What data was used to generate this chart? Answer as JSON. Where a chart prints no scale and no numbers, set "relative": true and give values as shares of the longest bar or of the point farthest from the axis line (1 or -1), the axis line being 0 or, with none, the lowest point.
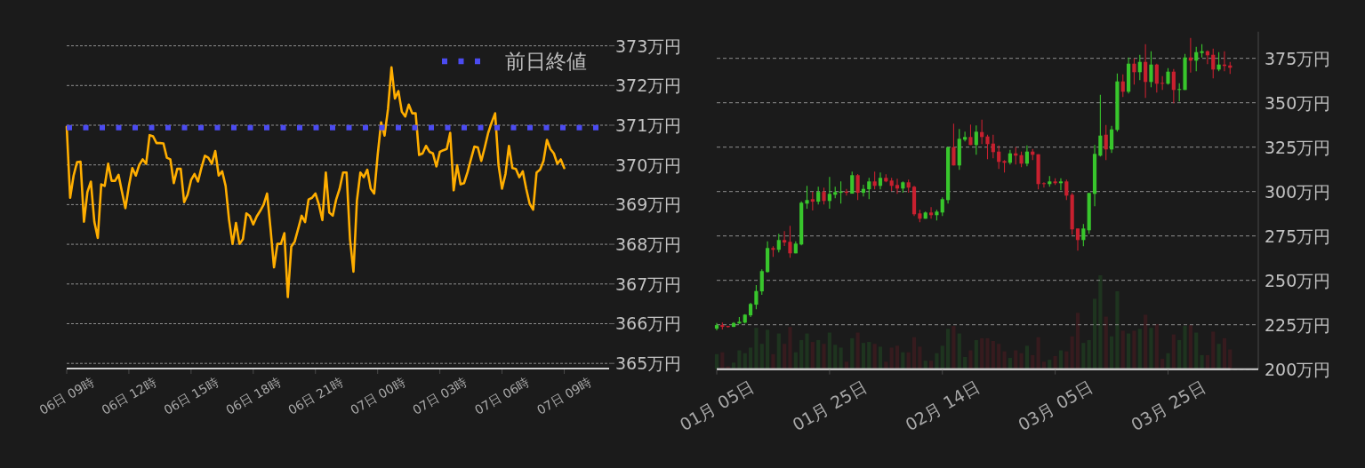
{
  "chart_data": [
    {
      "type": "line",
      "categories": [
        "06日 09時",
        null,
        null,
        null,
        null,
        null,
        null,
        null,
        null,
        null,
        null,
        null,
        null,
        null,
        null,
        null,
        null,
        null,
        "06日 12時",
        null,
        null,
        null,
        null,
        null,
        null,
        null,
        null,
        null,
        null,
        null,
        null,
        null,
        null,
        null,
        null,
        null,
        "06日 15時",
        null,
        null,
        null,
        null,
        null,
        null,
        null,
        null,
        null,
        null,
        null,
        null,
        null,
        null,
        null,
        null,
        null,
        "06日 18時",
        null,
        null,
        null,
        null,
        null,
        null,
        null,
        null,
        null,
        null,
        null,
        null,
        null,
        null,
        null,
        null,
        null,
        "06日 21時",
        null,
        null,
        null,
        null,
        null,
        null,
        null,
        null,
        null,
        null,
        null,
        null,
        null,
        null,
        null,
        null,
        null,
        "07日 00時",
        null,
        null,
        null,
        null,
        null,
        null,
        null,
        null,
        null,
        null,
        null,
        null,
        null,
        null,
        null,
        null,
        null,
        "07日 03時",
        null,
        null,
        null,
        null,
        null,
        null,
        null,
        null,
        null,
        null,
        null,
        null,
        null,
        null,
        null,
        null,
        null,
        "07日 06時",
        null,
        null,
        null,
        null,
        null,
        null,
        null,
        null,
        null,
        null,
        null,
        null,
        null,
        null,
        null,
        null,
        null,
        "07日 09時",
        null,
        null,
        null,
        null,
        null,
        null,
        null,
        null,
        null,
        null,
        null,
        null,
        null
      ],
      "series": [
        {
          "color": "#ffae00",
          "values": [
            370.96,
            369.17,
            369.73,
            370.07,
            370.08,
            368.57,
            369.32,
            369.58,
            368.57,
            368.16,
            369.51,
            369.47,
            370.03,
            369.6,
            369.6,
            369.75,
            369.32,
            368.91,
            369.47,
            369.92,
            369.73,
            370,
            370.14,
            370.03,
            370.75,
            370.72,
            370.55,
            370.55,
            370.54,
            370.18,
            370.14,
            369.54,
            369.9,
            369.9,
            369.06,
            369.25,
            369.62,
            369.77,
            369.58,
            369.93,
            370.23,
            370.18,
            370.03,
            370.35,
            369.73,
            369.84,
            369.47,
            368.61,
            368.01,
            368.54,
            368.01,
            368.13,
            368.78,
            368.71,
            368.5,
            368.7,
            368.84,
            369,
            369.28,
            368.39,
            367.42,
            368.01,
            368.01,
            368.28,
            366.67,
            367.94,
            368.07,
            368.39,
            368.72,
            368.56,
            369.13,
            369.17,
            369.28,
            369,
            368.61,
            369.81,
            368.8,
            368.72,
            369.13,
            369.4,
            369.81,
            369.81,
            368.13,
            367.31,
            369.1,
            369.81,
            369.69,
            369.88,
            369.4,
            369.28,
            370.25,
            371.07,
            370.74,
            371.41,
            372.46,
            371.67,
            371.86,
            371.34,
            371.22,
            371.52,
            371.3,
            371.3,
            370.25,
            370.29,
            370.48,
            370.33,
            370.29,
            369.96,
            370.33,
            370.37,
            370.4,
            370.81,
            369.36,
            369.99,
            369.51,
            369.54,
            369.81,
            370.14,
            370.46,
            370.44,
            370.1,
            370.44,
            370.81,
            371.07,
            371.3,
            369.99,
            369.4,
            369.77,
            370.48,
            369.92,
            369.9,
            369.69,
            369.84,
            369.4,
            369.02,
            368.87,
            369.81,
            369.88,
            370.1,
            370.63,
            370.4,
            370.29,
            370.03,
            370.14,
            369.92,
            null,
            null,
            null,
            null,
            null,
            null,
            null,
            null,
            null,
            null,
            null,
            null,
            null
          ]
        }
      ],
      "ylim": [
        364.87,
        373
      ],
      "yticks": [
        {
          "value": 365,
          "label": "365万円"
        },
        {
          "value": 366,
          "label": "366万円"
        },
        {
          "value": 367,
          "label": "367万円"
        },
        {
          "value": 368,
          "label": "368万円"
        },
        {
          "value": 369,
          "label": "369万円"
        },
        {
          "value": 370,
          "label": "370万円"
        },
        {
          "value": 371,
          "label": "371万円"
        },
        {
          "value": 372,
          "label": "372万円"
        },
        {
          "value": 373,
          "label": "373万円"
        }
      ],
      "grid": "y",
      "legend": "top right",
      "ref_lines": [
        {
          "axis": "y",
          "value": 370.94,
          "label": "前日終値",
          "color": "#4b4bf0",
          "line_style": "dotted"
        }
      ]
    },
    {
      "type": "candlestick",
      "x": [
        "--01-05",
        "--01-06",
        "--01-07",
        "--01-08",
        "--01-09",
        "--01-10",
        "--01-11",
        "--01-12",
        "--01-13",
        "--01-14",
        "--01-15",
        "--01-16",
        "--01-17",
        "--01-18",
        "--01-19",
        "--01-20",
        "--01-21",
        "--01-22",
        "--01-23",
        "--01-24",
        "--01-25",
        "--01-26",
        "--01-27",
        "--01-28",
        "--01-29",
        "--01-30",
        "--01-31",
        "--02-01",
        "--02-02",
        "--02-03",
        "--02-04",
        "--02-05",
        "--02-06",
        "--02-07",
        "--02-08",
        "--02-09",
        "--02-10",
        "--02-11",
        "--02-12",
        "--02-13",
        "--02-14",
        "--02-15",
        "--02-16",
        "--02-17",
        "--02-18",
        "--02-19",
        "--02-20",
        "--02-21",
        "--02-22",
        "--02-23",
        "--02-24",
        "--02-25",
        "--02-26",
        "--02-27",
        "--02-28",
        "--02-29",
        "--03-01",
        "--03-02",
        "--03-03",
        "--03-04",
        "--03-05",
        "--03-06",
        "--03-07",
        "--03-08",
        "--03-09",
        "--03-10",
        "--03-11",
        "--03-12",
        "--03-13",
        "--03-14",
        "--03-15",
        "--03-16",
        "--03-17",
        "--03-18",
        "--03-19",
        "--03-20",
        "--03-21",
        "--03-22",
        "--03-23",
        "--03-24",
        "--03-25",
        "--03-26",
        "--03-27",
        "--03-28",
        "--03-29",
        "--03-30",
        "--03-31",
        "--04-01",
        "--04-02",
        "--04-03",
        "--04-04",
        "--04-05"
      ],
      "ohlc": [
        [
          222.8,
          226,
          221.8,
          224.8
        ],
        [
          224.8,
          226.2,
          222.3,
          223.8
        ],
        [
          224.3,
          224.5,
          223.5,
          223.7
        ],
        [
          223.8,
          226.5,
          223.7,
          226
        ],
        [
          225.7,
          229.3,
          225.6,
          226.7
        ],
        [
          226.2,
          231,
          225.7,
          230.7
        ],
        [
          230.3,
          237.3,
          229.3,
          236.7
        ],
        [
          236.3,
          247.3,
          233.7,
          244
        ],
        [
          243.8,
          256.2,
          241.8,
          255.2
        ],
        [
          254.7,
          272,
          254.3,
          268.2
        ],
        [
          268.2,
          269.2,
          263.2,
          267.2
        ],
        [
          267.2,
          276.2,
          265.7,
          272.7
        ],
        [
          272.7,
          277.7,
          269.3,
          271.3
        ],
        [
          271.7,
          280.7,
          262.7,
          265.2
        ],
        [
          265.2,
          272,
          265.2,
          270.7
        ],
        [
          270.2,
          294.5,
          269.7,
          293.7
        ],
        [
          293.2,
          303.2,
          290.3,
          295.2
        ],
        [
          295.7,
          299.8,
          289.3,
          294.3
        ],
        [
          294.3,
          302.7,
          292.7,
          299.8
        ],
        [
          299.8,
          302.2,
          292.7,
          294.7
        ],
        [
          294.7,
          308.2,
          290.3,
          298.7
        ],
        [
          298.2,
          302.7,
          296.2,
          299.7
        ],
        [
          299.3,
          305.7,
          293.2,
          300
        ],
        [
          300,
          301.5,
          297.7,
          299.3
        ],
        [
          298.8,
          311.2,
          298.8,
          309.2
        ],
        [
          309.2,
          309.8,
          295.2,
          299.3
        ],
        [
          299.3,
          303.8,
          297.2,
          301.5
        ],
        [
          301.3,
          307.7,
          295.7,
          305.7
        ],
        [
          305.7,
          311.2,
          301.2,
          303.2
        ],
        [
          303.2,
          310.7,
          301.2,
          307.7
        ],
        [
          307.7,
          309.7,
          305.2,
          305.7
        ],
        [
          306.2,
          307.7,
          300.2,
          303.2
        ],
        [
          303.7,
          307.2,
          298.7,
          301.7
        ],
        [
          301.7,
          305.7,
          299.3,
          305.2
        ],
        [
          305.2,
          306.7,
          299.3,
          302.2
        ],
        [
          302.7,
          303.2,
          286.2,
          287.2
        ],
        [
          287.7,
          289.7,
          282.7,
          284.7
        ],
        [
          284.7,
          288.7,
          284.7,
          288.2
        ],
        [
          288.2,
          291.2,
          284.7,
          286.7
        ],
        [
          286.7,
          289.7,
          283.7,
          288.7
        ],
        [
          288.2,
          296.7,
          286.2,
          295.7
        ],
        [
          295.2,
          325,
          293.2,
          325
        ],
        [
          325,
          338.2,
          314.7,
          314.7
        ],
        [
          314.7,
          335.2,
          312.2,
          329.7
        ],
        [
          329.2,
          333.7,
          328.2,
          330.7
        ],
        [
          330.7,
          337.7,
          326.2,
          326.2
        ],
        [
          326.2,
          337.2,
          320.7,
          333.7
        ],
        [
          333.5,
          340.5,
          326.7,
          330.7
        ],
        [
          331,
          332,
          318.2,
          326.7
        ],
        [
          327,
          332,
          318.7,
          322.2
        ],
        [
          322.5,
          326,
          312.7,
          316.7
        ],
        [
          317.2,
          317.7,
          310.7,
          316.2
        ],
        [
          316.2,
          323.5,
          315.2,
          321.5
        ],
        [
          321.5,
          325,
          315.2,
          320.2
        ],
        [
          320.5,
          322.5,
          313.7,
          315.7
        ],
        [
          315.7,
          326,
          314.2,
          322.5
        ],
        [
          322.5,
          324,
          317.7,
          320.7
        ],
        [
          321,
          321,
          301.2,
          304.2
        ],
        [
          304.7,
          305.2,
          302.2,
          304.2
        ],
        [
          304.2,
          308.7,
          302.7,
          305.7
        ],
        [
          305.7,
          307.5,
          303.7,
          304.7
        ],
        [
          304.7,
          307.5,
          300.7,
          305.7
        ],
        [
          305.7,
          306.7,
          295.2,
          297.7
        ],
        [
          298.2,
          299.2,
          275.7,
          278.7
        ],
        [
          279.2,
          279.2,
          266.7,
          272.7
        ],
        [
          272.7,
          281.7,
          269.2,
          279.2
        ],
        [
          278.2,
          299.2,
          276.2,
          299.2
        ],
        [
          298.7,
          326.2,
          291.7,
          321.2
        ],
        [
          320.2,
          354.5,
          319.7,
          331.5
        ],
        [
          332,
          337.5,
          317.7,
          323.7
        ],
        [
          323.7,
          337,
          321.7,
          335
        ],
        [
          334.7,
          366.5,
          333.7,
          362
        ],
        [
          362,
          366,
          353.2,
          356.2
        ],
        [
          356.2,
          375.5,
          355.2,
          372
        ],
        [
          372,
          375,
          360.2,
          367.2
        ],
        [
          367.2,
          377,
          362.7,
          373
        ],
        [
          373,
          383,
          352.7,
          361.7
        ],
        [
          361.7,
          379,
          358.7,
          371.5
        ],
        [
          371.5,
          372,
          355.7,
          360.7
        ],
        [
          361.2,
          365,
          357.2,
          360.7
        ],
        [
          360.7,
          369.5,
          360.2,
          367.5
        ],
        [
          367.5,
          369,
          349.7,
          357.2
        ],
        [
          357.2,
          361,
          350.7,
          357.7
        ],
        [
          357.2,
          377.5,
          357.2,
          375.5
        ],
        [
          375.5,
          386.5,
          367,
          373.7
        ],
        [
          373.7,
          381.5,
          367.7,
          378.5
        ],
        [
          378,
          383,
          375.5,
          379
        ],
        [
          379,
          379.5,
          371.7,
          376.7
        ],
        [
          377,
          380.5,
          363.7,
          368.7
        ],
        [
          368.7,
          378.5,
          367.7,
          371.5
        ],
        [
          371.5,
          379,
          367.7,
          370.7
        ],
        [
          371,
          373,
          366.2,
          369.7
        ]
      ],
      "colors": [
        "#38c62c",
        "#c8202f",
        "#c8202f",
        "#38c62c",
        "#38c62c",
        "#38c62c",
        "#38c62c",
        "#38c62c",
        "#38c62c",
        "#38c62c",
        "#c8202f",
        "#38c62c",
        "#c8202f",
        "#c8202f",
        "#38c62c",
        "#38c62c",
        "#38c62c",
        "#c8202f",
        "#38c62c",
        "#c8202f",
        "#38c62c",
        "#38c62c",
        "#38c62c",
        "#c8202f",
        "#38c62c",
        "#c8202f",
        "#38c62c",
        "#38c62c",
        "#c8202f",
        "#38c62c",
        "#c8202f",
        "#c8202f",
        "#c8202f",
        "#38c62c",
        "#c8202f",
        "#c8202f",
        "#c8202f",
        "#38c62c",
        "#c8202f",
        "#38c62c",
        "#38c62c",
        "#38c62c",
        "#c8202f",
        "#38c62c",
        "#38c62c",
        "#c8202f",
        "#38c62c",
        "#c8202f",
        "#c8202f",
        "#c8202f",
        "#c8202f",
        "#c8202f",
        "#38c62c",
        "#c8202f",
        "#c8202f",
        "#38c62c",
        "#c8202f",
        "#c8202f",
        "#c8202f",
        "#38c62c",
        "#c8202f",
        "#38c62c",
        "#c8202f",
        "#c8202f",
        "#c8202f",
        "#38c62c",
        "#38c62c",
        "#38c62c",
        "#38c62c",
        "#c8202f",
        "#38c62c",
        "#38c62c",
        "#c8202f",
        "#38c62c",
        "#c8202f",
        "#38c62c",
        "#c8202f",
        "#38c62c",
        "#c8202f",
        "#c8202f",
        "#38c62c",
        "#c8202f",
        "#38c62c",
        "#38c62c",
        "#c8202f",
        "#38c62c",
        "#38c62c",
        "#c8202f",
        "#c8202f",
        "#38c62c",
        "#c8202f",
        "#c8202f"
      ],
      "xlim": [
        "--01-05",
        "--04-10"
      ],
      "xticks": [
        {
          "value": "--01-05",
          "label": "01月 05日"
        },
        {
          "value": "--01-25",
          "label": "01月 25日"
        },
        {
          "value": "--02-14",
          "label": "02月 14日"
        },
        {
          "value": "--03-05",
          "label": "03月 05日"
        },
        {
          "value": "--03-25",
          "label": "03月 25日"
        }
      ],
      "ylim": [
        200,
        390
      ],
      "yticks": [
        {
          "value": 200,
          "label": "200万円"
        },
        {
          "value": 225,
          "label": "225万円"
        },
        {
          "value": 250,
          "label": "250万円"
        },
        {
          "value": 275,
          "label": "275万円"
        },
        {
          "value": 300,
          "label": "300万円"
        },
        {
          "value": 325,
          "label": "325万円"
        },
        {
          "value": 350,
          "label": "350万円"
        },
        {
          "value": 375,
          "label": "375万円"
        }
      ],
      "grid": "y"
    },
    {
      "type": "bar",
      "relative": true,
      "categories": [
        null,
        null,
        null,
        null,
        null,
        null,
        null,
        null,
        null,
        null,
        null,
        null,
        null,
        null,
        null,
        null,
        null,
        null,
        null,
        null,
        null,
        null,
        null,
        null,
        null,
        null,
        null,
        null,
        null,
        null,
        null,
        null,
        null,
        null,
        null,
        null,
        null,
        null,
        null,
        null,
        null,
        null,
        null,
        null,
        null,
        null,
        null,
        null,
        null,
        null,
        null,
        null,
        null,
        null,
        null,
        null,
        null,
        null,
        null,
        null,
        null,
        null,
        null,
        null,
        null,
        null,
        null,
        null,
        null,
        null,
        null,
        null,
        null,
        null,
        null,
        null,
        null,
        null,
        null,
        null,
        null,
        null,
        null,
        null,
        null,
        null,
        null,
        null,
        null,
        null,
        null,
        null
      ],
      "values": [
        0.16,
        0.18,
        0.03,
        0.07,
        0.2,
        0.17,
        0.23,
        0.44,
        0.27,
        0.42,
        0.16,
        0.38,
        0.27,
        0.45,
        0.18,
        0.31,
        0.38,
        0.29,
        0.31,
        0.27,
        0.39,
        0.26,
        0.23,
        0.08,
        0.33,
        0.39,
        0.28,
        0.29,
        0.27,
        0.24,
        0.08,
        0.23,
        0.25,
        0.18,
        0.18,
        0.34,
        0.24,
        0.09,
        0.09,
        0.17,
        0.25,
        0.43,
        0.46,
        0.38,
        0.13,
        0.2,
        0.31,
        0.33,
        0.33,
        0.3,
        0.27,
        0.19,
        0.12,
        0.2,
        0.17,
        0.25,
        0.15,
        0.34,
        0.08,
        0.1,
        0.14,
        0.2,
        0.19,
        0.35,
        0.6,
        0.28,
        0.31,
        0.75,
        1,
        0.56,
        0.35,
        0.83,
        0.41,
        0.38,
        0.41,
        0.43,
        0.58,
        0.44,
        0.48,
        0.11,
        0.17,
        0.37,
        0.31,
        0.46,
        0.47,
        0.39,
        0.15,
        0.15,
        0.4,
        0.27,
        0.33,
        0.21
      ],
      "colors": [
        "#1e341f",
        "#361b1e",
        "#361b1e",
        "#1e341f",
        "#1e341f",
        "#1e341f",
        "#1e341f",
        "#1e341f",
        "#1e341f",
        "#1e341f",
        "#361b1e",
        "#1e341f",
        "#361b1e",
        "#361b1e",
        "#1e341f",
        "#1e341f",
        "#1e341f",
        "#361b1e",
        "#1e341f",
        "#361b1e",
        "#1e341f",
        "#1e341f",
        "#1e341f",
        "#361b1e",
        "#1e341f",
        "#361b1e",
        "#1e341f",
        "#1e341f",
        "#361b1e",
        "#1e341f",
        "#361b1e",
        "#361b1e",
        "#361b1e",
        "#1e341f",
        "#361b1e",
        "#361b1e",
        "#361b1e",
        "#1e341f",
        "#361b1e",
        "#1e341f",
        "#1e341f",
        "#1e341f",
        "#361b1e",
        "#1e341f",
        "#1e341f",
        "#361b1e",
        "#1e341f",
        "#361b1e",
        "#361b1e",
        "#361b1e",
        "#361b1e",
        "#361b1e",
        "#1e341f",
        "#361b1e",
        "#361b1e",
        "#1e341f",
        "#361b1e",
        "#361b1e",
        "#361b1e",
        "#1e341f",
        "#361b1e",
        "#1e341f",
        "#361b1e",
        "#361b1e",
        "#361b1e",
        "#1e341f",
        "#1e341f",
        "#1e341f",
        "#1e341f",
        "#361b1e",
        "#1e341f",
        "#1e341f",
        "#361b1e",
        "#1e341f",
        "#361b1e",
        "#1e341f",
        "#361b1e",
        "#1e341f",
        "#361b1e",
        "#361b1e",
        "#1e341f",
        "#361b1e",
        "#1e341f",
        "#1e341f",
        "#361b1e",
        "#1e341f",
        "#1e341f",
        "#361b1e",
        "#361b1e",
        "#1e341f",
        "#361b1e",
        "#361b1e"
      ]
    }
  ]
}
